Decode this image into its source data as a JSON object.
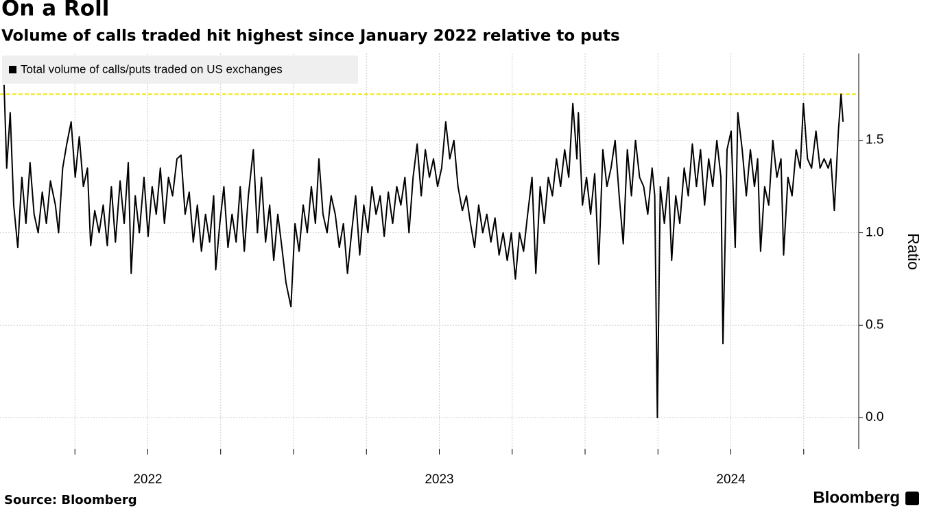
{
  "chart_data": {
    "type": "line",
    "title": "On a Roll",
    "subtitle": "Volume of calls traded hit highest since January 2022 relative to puts",
    "y_label": "Ratio",
    "source": "Source: Bloomberg",
    "brand": "Bloomberg",
    "x": [
      2022.007,
      2022.016,
      2022.028,
      2022.04,
      2022.054,
      2022.068,
      2022.082,
      2022.096,
      2022.11,
      2022.124,
      2022.138,
      2022.152,
      2022.166,
      2022.183,
      2022.194,
      2022.208,
      2022.222,
      2022.237,
      2022.251,
      2022.265,
      2022.279,
      2022.293,
      2022.304,
      2022.318,
      2022.333,
      2022.347,
      2022.361,
      2022.375,
      2022.389,
      2022.405,
      2022.419,
      2022.433,
      2022.443,
      2022.457,
      2022.471,
      2022.487,
      2022.501,
      2022.515,
      2022.529,
      2022.543,
      2022.557,
      2022.571,
      2022.585,
      2022.6,
      2022.614,
      2022.628,
      2022.642,
      2022.656,
      2022.67,
      2022.684,
      2022.698,
      2022.712,
      2022.726,
      2022.733,
      2022.747,
      2022.761,
      2022.775,
      2022.789,
      2022.803,
      2022.817,
      2022.831,
      2022.845,
      2022.862,
      2022.876,
      2022.89,
      2022.904,
      2022.918,
      2022.932,
      2022.946,
      2022.96,
      2022.974,
      2022.991,
      2023.005,
      2023.019,
      2023.033,
      2023.047,
      2023.061,
      2023.075,
      2023.087,
      2023.101,
      2023.115,
      2023.129,
      2023.143,
      2023.157,
      2023.171,
      2023.185,
      2023.199,
      2023.213,
      2023.227,
      2023.241,
      2023.255,
      2023.269,
      2023.283,
      2023.297,
      2023.311,
      2023.325,
      2023.34,
      2023.354,
      2023.368,
      2023.382,
      2023.396,
      2023.41,
      2023.424,
      2023.438,
      2023.452,
      2023.466,
      2023.48,
      2023.494,
      2023.508,
      2023.522,
      2023.536,
      2023.55,
      2023.564,
      2023.579,
      2023.593,
      2023.607,
      2023.621,
      2023.635,
      2023.649,
      2023.663,
      2023.677,
      2023.691,
      2023.705,
      2023.719,
      2023.733,
      2023.747,
      2023.761,
      2023.775,
      2023.789,
      2023.803,
      2023.818,
      2023.831,
      2023.846,
      2023.86,
      2023.874,
      2023.888,
      2023.902,
      2023.916,
      2023.93,
      2023.944,
      2023.958,
      2023.972,
      2023.977,
      2023.991,
      2024.005,
      2024.019,
      2024.033,
      2024.047,
      2024.061,
      2024.075,
      2024.089,
      2024.103,
      2024.117,
      2024.131,
      2024.145,
      2024.159,
      2024.173,
      2024.187,
      2024.201,
      2024.215,
      2024.23,
      2024.239,
      2024.248,
      2024.258,
      2024.272,
      2024.286,
      2024.297,
      2024.311,
      2024.325,
      2024.34,
      2024.354,
      2024.368,
      2024.382,
      2024.396,
      2024.41,
      2024.424,
      2024.438,
      2024.452,
      2024.466,
      2024.473,
      2024.487,
      2024.501,
      2024.515,
      2024.524,
      2024.539,
      2024.553,
      2024.567,
      2024.581,
      2024.592,
      2024.602,
      2024.616,
      2024.63,
      2024.644,
      2024.658,
      2024.672,
      2024.681,
      2024.696,
      2024.71,
      2024.724,
      2024.738,
      2024.749,
      2024.763,
      2024.777,
      2024.792,
      2024.806,
      2024.82,
      2024.834,
      2024.843,
      2024.855,
      2024.869,
      2024.878,
      2024.885
    ],
    "series": [
      {
        "name": "Total volume of calls/puts traded on US exchanges",
        "color": "#000000",
        "values": [
          1.8,
          1.35,
          1.65,
          1.15,
          0.92,
          1.3,
          1.05,
          1.38,
          1.1,
          1.0,
          1.22,
          1.05,
          1.28,
          1.15,
          1.0,
          1.35,
          1.48,
          1.6,
          1.3,
          1.52,
          1.25,
          1.35,
          0.93,
          1.12,
          1.0,
          1.15,
          0.93,
          1.25,
          0.95,
          1.28,
          1.05,
          1.38,
          0.78,
          1.2,
          1.0,
          1.3,
          0.98,
          1.25,
          1.1,
          1.35,
          1.05,
          1.3,
          1.2,
          1.4,
          1.42,
          1.1,
          1.22,
          0.95,
          1.15,
          0.9,
          1.1,
          0.95,
          1.2,
          0.8,
          1.05,
          1.25,
          0.92,
          1.1,
          0.95,
          1.25,
          0.9,
          1.2,
          1.45,
          1.0,
          1.3,
          0.95,
          1.15,
          0.85,
          1.1,
          0.92,
          0.73,
          0.6,
          1.05,
          0.9,
          1.15,
          1.0,
          1.25,
          1.05,
          1.4,
          1.1,
          1.0,
          1.2,
          1.1,
          0.92,
          1.05,
          0.78,
          1.0,
          1.2,
          0.88,
          1.15,
          1.0,
          1.25,
          1.1,
          1.2,
          0.98,
          1.22,
          1.05,
          1.25,
          1.15,
          1.3,
          1.0,
          1.3,
          1.48,
          1.2,
          1.45,
          1.3,
          1.4,
          1.25,
          1.35,
          1.6,
          1.4,
          1.5,
          1.25,
          1.12,
          1.2,
          1.05,
          0.92,
          1.15,
          1.0,
          1.1,
          0.95,
          1.08,
          0.88,
          1.0,
          0.85,
          1.0,
          0.75,
          1.0,
          0.9,
          1.1,
          1.3,
          0.78,
          1.25,
          1.05,
          1.3,
          1.2,
          1.4,
          1.25,
          1.45,
          1.3,
          1.7,
          1.4,
          1.65,
          1.15,
          1.3,
          1.1,
          1.32,
          0.83,
          1.45,
          1.25,
          1.35,
          1.5,
          1.2,
          0.94,
          1.45,
          1.2,
          1.5,
          1.3,
          1.25,
          1.1,
          1.35,
          1.2,
          0.0,
          1.25,
          1.05,
          1.3,
          0.85,
          1.2,
          1.05,
          1.35,
          1.2,
          1.48,
          1.25,
          1.45,
          1.15,
          1.4,
          1.25,
          1.5,
          1.3,
          0.4,
          1.45,
          1.55,
          0.92,
          1.65,
          1.45,
          1.2,
          1.45,
          1.25,
          1.4,
          0.9,
          1.25,
          1.15,
          1.5,
          1.3,
          1.4,
          0.88,
          1.3,
          1.2,
          1.45,
          1.35,
          1.7,
          1.4,
          1.35,
          1.55,
          1.35,
          1.4,
          1.35,
          1.4,
          1.12,
          1.55,
          1.75,
          1.6
        ]
      }
    ],
    "reference_line": {
      "value": 1.75,
      "color": "#f2e600"
    },
    "xlim": [
      2021.993,
      2024.934
    ],
    "xticks": [
      {
        "value": 2022.5,
        "label": "2022"
      },
      {
        "value": 2023.5,
        "label": "2023"
      },
      {
        "value": 2024.5,
        "label": "2024"
      }
    ],
    "xgrid": [
      2022.25,
      2022.5,
      2022.75,
      2023.0,
      2023.25,
      2023.5,
      2023.75,
      2024.0,
      2024.25,
      2024.5,
      2024.75
    ],
    "ylim": [
      -0.17,
      1.97
    ],
    "yticks": [
      {
        "value": 0,
        "label": "0.0"
      },
      0.5,
      {
        "value": 1,
        "label": "1.0"
      },
      1.5
    ],
    "grid": true,
    "legend": "top-left"
  }
}
